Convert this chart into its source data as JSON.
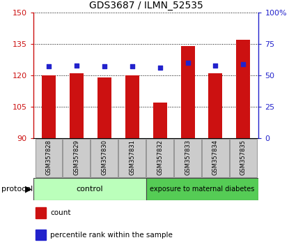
{
  "title": "GDS3687 / ILMN_52535",
  "samples": [
    "GSM357828",
    "GSM357829",
    "GSM357830",
    "GSM357831",
    "GSM357832",
    "GSM357833",
    "GSM357834",
    "GSM357835"
  ],
  "counts": [
    120,
    121,
    119,
    120,
    107,
    134,
    121,
    137
  ],
  "percentiles": [
    57,
    58,
    57,
    57,
    56,
    60,
    58,
    59
  ],
  "ylim_left": [
    90,
    150
  ],
  "ylim_right": [
    0,
    100
  ],
  "yticks_left": [
    90,
    105,
    120,
    135,
    150
  ],
  "yticks_right": [
    0,
    25,
    50,
    75,
    100
  ],
  "bar_color": "#cc1111",
  "dot_color": "#2222cc",
  "control_group_count": 4,
  "treatment_group_count": 4,
  "control_label": "control",
  "treatment_label": "exposure to maternal diabetes",
  "protocol_label": "protocol",
  "legend_count": "count",
  "legend_percentile": "percentile rank within the sample",
  "control_bg": "#bbffbb",
  "treatment_bg": "#55cc55",
  "tick_label_bg": "#cccccc",
  "bar_width": 0.5,
  "title_fontsize": 10,
  "axis_fontsize": 8,
  "label_fontsize": 6,
  "legend_fontsize": 7.5
}
